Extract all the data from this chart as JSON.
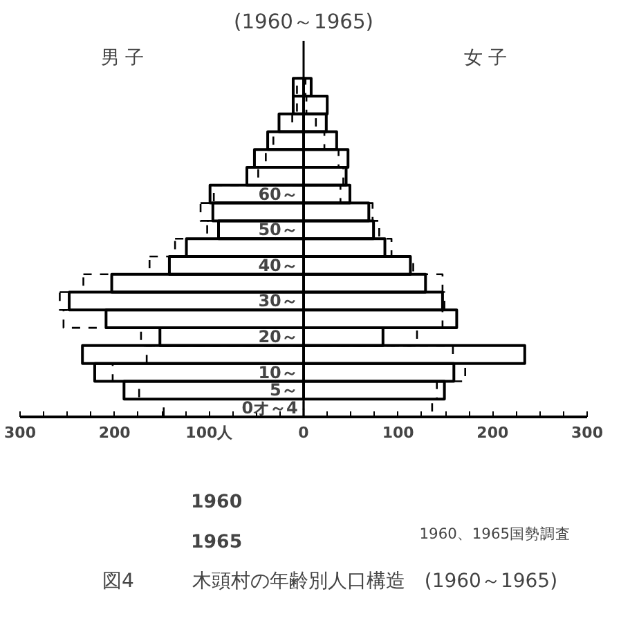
{
  "chart_data": {
    "type": "bar",
    "orientation": "horizontal",
    "title": "(1960～1965)",
    "categories": [
      null,
      null,
      null,
      null,
      null,
      null,
      "60～",
      null,
      "50～",
      null,
      "40～",
      null,
      "30～",
      null,
      "20～",
      null,
      "10～",
      "5～",
      "0オ～4"
    ],
    "series": [
      {
        "name": "1960",
        "color": "#000000",
        "line_style": "solid",
        "values": [
          -11,
          -11,
          -26,
          -38,
          -52,
          -60,
          -99,
          -96,
          -90,
          -124,
          -142,
          -203,
          -248,
          -209,
          -152,
          -234,
          -221,
          -190,
          null
        ]
      },
      {
        "name": "1965",
        "color": "#000000",
        "line_style": "dashed",
        "values": [
          -7,
          -7,
          -12,
          -32,
          -40,
          -48,
          -95,
          -109,
          -102,
          -136,
          -163,
          -233,
          -258,
          -254,
          -172,
          -166,
          -202,
          -174,
          -148
        ]
      },
      {
        "color": "#000000",
        "line_style": "solid",
        "values": [
          8,
          25,
          24,
          35,
          47,
          45,
          49,
          69,
          74,
          86,
          113,
          129,
          147,
          162,
          84,
          234,
          159,
          149,
          null
        ]
      },
      {
        "color": "#000000",
        "line_style": "dashed",
        "values": [
          2,
          3,
          13,
          22,
          37,
          42,
          39,
          73,
          80,
          93,
          116,
          147,
          149,
          147,
          120,
          158,
          171,
          141,
          136
        ]
      }
    ],
    "xlim": [
      -300,
      300
    ],
    "xticks": [
      {
        "value": -300,
        "label": "300"
      },
      {
        "value": -200,
        "label": "200"
      },
      {
        "value": -100,
        "label": "100人"
      },
      0,
      100,
      200,
      300
    ],
    "legend": "bottom",
    "annotations": [
      "男 子",
      "女 子",
      "1960、1965国勢調査",
      "図4　　　木頭村の年齢別人口構造　(1960～1965)"
    ]
  }
}
